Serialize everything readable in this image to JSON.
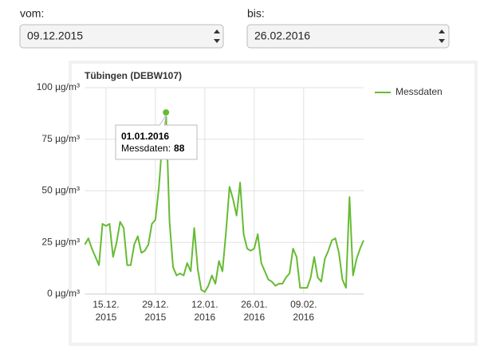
{
  "form": {
    "from_label": "vom:",
    "from_value": "09.12.2015",
    "to_label": "bis:",
    "to_value": "26.02.2016"
  },
  "chart_data": {
    "type": "line",
    "title": "Tübingen (DEBW107)",
    "x": [
      "2015-12-09",
      "2015-12-10",
      "2015-12-11",
      "2015-12-12",
      "2015-12-13",
      "2015-12-14",
      "2015-12-15",
      "2015-12-16",
      "2015-12-17",
      "2015-12-18",
      "2015-12-19",
      "2015-12-20",
      "2015-12-21",
      "2015-12-22",
      "2015-12-23",
      "2015-12-24",
      "2015-12-25",
      "2015-12-26",
      "2015-12-27",
      "2015-12-28",
      "2015-12-29",
      "2015-12-30",
      "2015-12-31",
      "2016-01-01",
      "2016-01-02",
      "2016-01-03",
      "2016-01-04",
      "2016-01-05",
      "2016-01-06",
      "2016-01-07",
      "2016-01-08",
      "2016-01-09",
      "2016-01-10",
      "2016-01-11",
      "2016-01-12",
      "2016-01-13",
      "2016-01-14",
      "2016-01-15",
      "2016-01-16",
      "2016-01-17",
      "2016-01-18",
      "2016-01-19",
      "2016-01-20",
      "2016-01-21",
      "2016-01-22",
      "2016-01-23",
      "2016-01-24",
      "2016-01-25",
      "2016-01-26",
      "2016-01-27",
      "2016-01-28",
      "2016-01-29",
      "2016-01-30",
      "2016-01-31",
      "2016-02-01",
      "2016-02-02",
      "2016-02-03",
      "2016-02-04",
      "2016-02-05",
      "2016-02-06",
      "2016-02-07",
      "2016-02-08",
      "2016-02-09",
      "2016-02-10",
      "2016-02-11",
      "2016-02-12",
      "2016-02-13",
      "2016-02-14",
      "2016-02-15",
      "2016-02-16",
      "2016-02-17",
      "2016-02-18",
      "2016-02-19",
      "2016-02-20",
      "2016-02-21",
      "2016-02-22",
      "2016-02-23",
      "2016-02-24",
      "2016-02-25",
      "2016-02-26"
    ],
    "series": [
      {
        "name": "Messdaten",
        "color": "#66bb33",
        "values": [
          24,
          27,
          22,
          18,
          14,
          34,
          33,
          34,
          18,
          25,
          35,
          32,
          14,
          14,
          24,
          28,
          20,
          21,
          24,
          34,
          36,
          52,
          75,
          88,
          35,
          13,
          9,
          10,
          9,
          15,
          11,
          32,
          12,
          2,
          1,
          4,
          9,
          5,
          16,
          11,
          30,
          52,
          46,
          38,
          54,
          29,
          22,
          21,
          22,
          29,
          15,
          11,
          7,
          6,
          4,
          5,
          5,
          8,
          10,
          22,
          18,
          3,
          3,
          3,
          8,
          18,
          8,
          6,
          17,
          21,
          26,
          27,
          20,
          7,
          3,
          47,
          9,
          17,
          22,
          26
        ]
      }
    ],
    "xlim": [
      "2015-12-09",
      "2016-02-26"
    ],
    "xticks": [
      {
        "value": "2015-12-15",
        "label": [
          "15.12.",
          "2015"
        ]
      },
      {
        "value": "2015-12-29",
        "label": [
          "29.12.",
          "2015"
        ]
      },
      {
        "value": "2016-01-12",
        "label": [
          "12.01.",
          "2016"
        ]
      },
      {
        "value": "2016-01-26",
        "label": [
          "26.01.",
          "2016"
        ]
      },
      {
        "value": "2016-02-09",
        "label": [
          "09.02.",
          "2016"
        ]
      }
    ],
    "ylim": [
      0,
      100
    ],
    "yticks": [
      {
        "value": 0,
        "label": "0 µg/m³"
      },
      {
        "value": 25,
        "label": "25 µg/m³"
      },
      {
        "value": 50,
        "label": "50 µg/m³"
      },
      {
        "value": 75,
        "label": "75 µg/m³"
      },
      {
        "value": 100,
        "label": "100 µg/m³"
      }
    ],
    "grid": true,
    "legend": "top-right",
    "tooltip": {
      "title": "01.01.2016",
      "label": "Messdaten:"
    }
  }
}
